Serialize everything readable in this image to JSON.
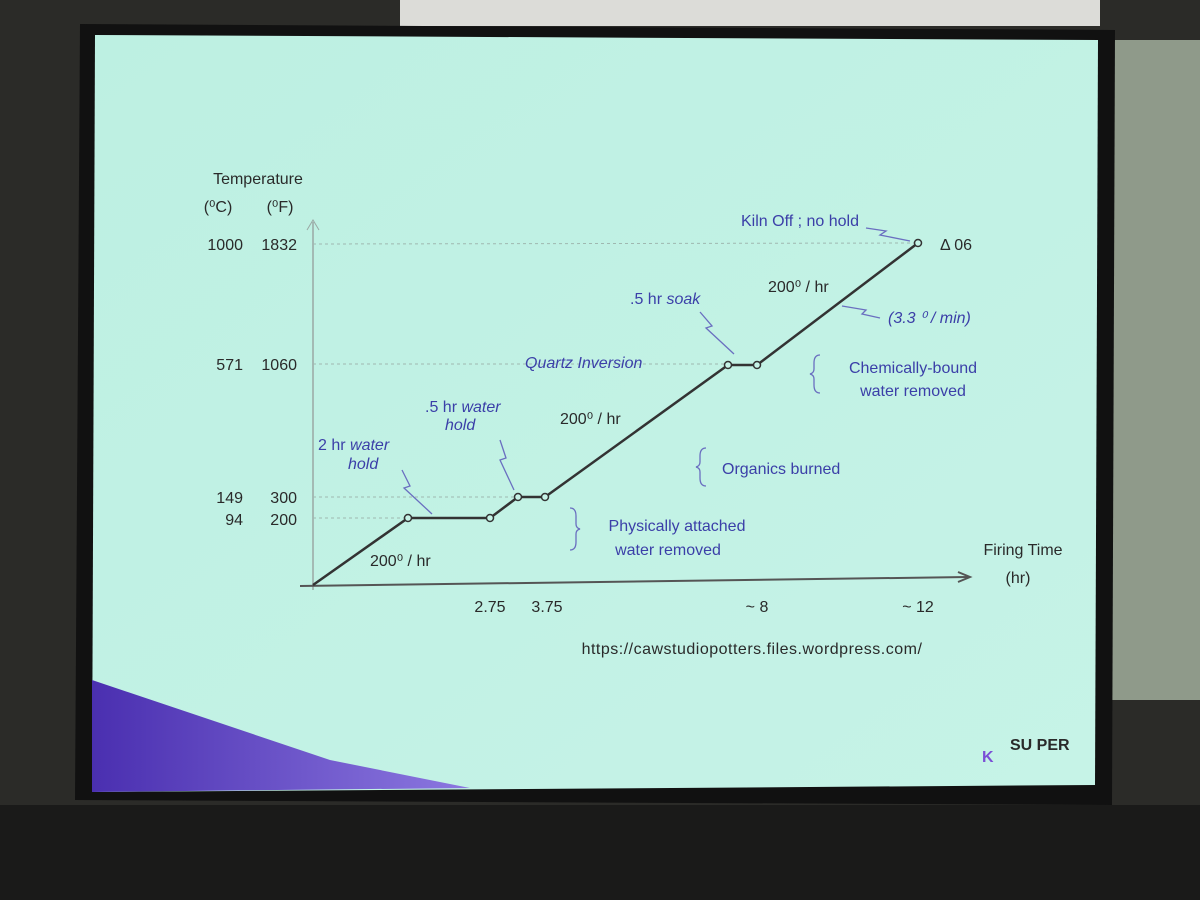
{
  "y_axis": {
    "title": "Temperature",
    "units": [
      "(⁰C)",
      "(⁰F)"
    ]
  },
  "y_labels": [
    [
      "1000",
      "1832"
    ],
    [
      "571",
      "1060"
    ],
    [
      "149",
      "300"
    ],
    [
      "94",
      "200"
    ]
  ],
  "x_axis": {
    "title": [
      "Firing Time",
      "(hr)"
    ]
  },
  "x_labels": [
    "2.75",
    "3.75",
    "~ 8",
    "~ 12"
  ],
  "annotations": {
    "kiln_off": "Kiln Off ; no hold",
    "cone": "Δ 06",
    "rate_top": "200⁰ / hr",
    "rate_min": "(3.3 ⁰ / min)",
    "soak": [
      ".5 hr",
      "soak"
    ],
    "quartz": "Quartz Inversion",
    "chemically": [
      "Chemically-bound",
      "water removed"
    ],
    "water_hold_half": [
      ".5 hr",
      "water",
      "hold"
    ],
    "rate_mid": "200⁰ / hr",
    "organics": "Organics burned",
    "water_hold_2hr": [
      "2 hr",
      "water",
      "hold"
    ],
    "physically": [
      "Physically attached",
      "water removed"
    ],
    "rate_low": "200⁰ / hr"
  },
  "url": "https://cawstudiopotters.files.wordpress.com/",
  "logo": {
    "letter": "K",
    "text": "SU PER"
  }
}
